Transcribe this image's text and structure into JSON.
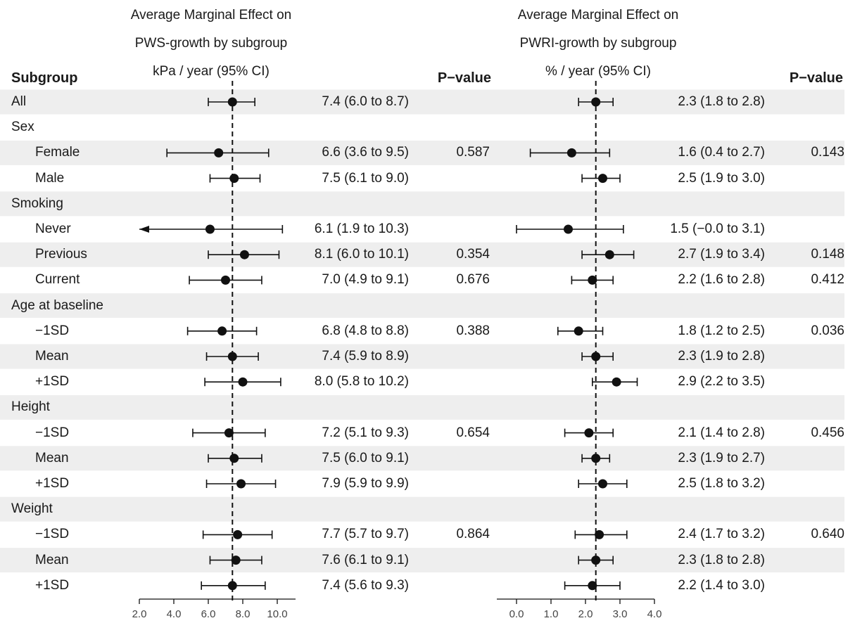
{
  "header": {
    "subgroup_label": "Subgroup",
    "left_title_1": "Average Marginal Effect on",
    "left_title_2": "PWS-growth by subgroup",
    "left_title_3": "kPa / year (95% CI)",
    "left_pvalue_label": "P−value",
    "right_title_1": "Average Marginal Effect on",
    "right_title_2": "PWRI-growth by subgroup",
    "right_title_3": "% / year (95% CI)",
    "right_pvalue_label": "P−value"
  },
  "chart_data": [
    {
      "type": "forest",
      "title": "Average Marginal Effect on PWS-growth by subgroup",
      "xlabel": "kPa / year (95% CI)",
      "xlim": [
        2.0,
        11.0
      ],
      "xticks": [
        2.0,
        4.0,
        6.0,
        8.0,
        10.0
      ],
      "xtick_labels": [
        "2.0",
        "4.0",
        "6.0",
        "8.0",
        "10.0"
      ],
      "reference_line": 7.4,
      "rows": [
        {
          "label": "All",
          "indent": false,
          "shaded": true,
          "est": 7.4,
          "lo": 6.0,
          "hi": 8.7,
          "ci_text": "7.4 (6.0 to 8.7)",
          "p": ""
        },
        {
          "label": "Sex",
          "indent": false,
          "shaded": false,
          "est": null,
          "ci_text": "",
          "p": ""
        },
        {
          "label": "Female",
          "indent": true,
          "shaded": true,
          "est": 6.6,
          "lo": 3.6,
          "hi": 9.5,
          "ci_text": "6.6 (3.6 to 9.5)",
          "p": "0.587"
        },
        {
          "label": "Male",
          "indent": true,
          "shaded": false,
          "est": 7.5,
          "lo": 6.1,
          "hi": 9.0,
          "ci_text": "7.5 (6.1 to 9.0)",
          "p": ""
        },
        {
          "label": "Smoking",
          "indent": false,
          "shaded": true,
          "est": null,
          "ci_text": "",
          "p": ""
        },
        {
          "label": "Never",
          "indent": true,
          "shaded": false,
          "est": 6.1,
          "lo": 1.9,
          "hi": 10.3,
          "ci_text": "6.1 (1.9 to 10.3)",
          "p": "",
          "arrow_left": true
        },
        {
          "label": "Previous",
          "indent": true,
          "shaded": true,
          "est": 8.1,
          "lo": 6.0,
          "hi": 10.1,
          "ci_text": "8.1 (6.0 to 10.1)",
          "p": "0.354"
        },
        {
          "label": "Current",
          "indent": true,
          "shaded": false,
          "est": 7.0,
          "lo": 4.9,
          "hi": 9.1,
          "ci_text": "7.0 (4.9 to 9.1)",
          "p": "0.676"
        },
        {
          "label": "Age at baseline",
          "indent": false,
          "shaded": true,
          "est": null,
          "ci_text": "",
          "p": ""
        },
        {
          "label": "−1SD",
          "indent": true,
          "shaded": false,
          "est": 6.8,
          "lo": 4.8,
          "hi": 8.8,
          "ci_text": "6.8 (4.8 to 8.8)",
          "p": "0.388"
        },
        {
          "label": "Mean",
          "indent": true,
          "shaded": true,
          "est": 7.4,
          "lo": 5.9,
          "hi": 8.9,
          "ci_text": "7.4 (5.9 to 8.9)",
          "p": ""
        },
        {
          "label": "+1SD",
          "indent": true,
          "shaded": false,
          "est": 8.0,
          "lo": 5.8,
          "hi": 10.2,
          "ci_text": "8.0 (5.8 to 10.2)",
          "p": ""
        },
        {
          "label": "Height",
          "indent": false,
          "shaded": true,
          "est": null,
          "ci_text": "",
          "p": ""
        },
        {
          "label": "−1SD",
          "indent": true,
          "shaded": false,
          "est": 7.2,
          "lo": 5.1,
          "hi": 9.3,
          "ci_text": "7.2 (5.1 to 9.3)",
          "p": "0.654"
        },
        {
          "label": "Mean",
          "indent": true,
          "shaded": true,
          "est": 7.5,
          "lo": 6.0,
          "hi": 9.1,
          "ci_text": "7.5 (6.0 to 9.1)",
          "p": ""
        },
        {
          "label": "+1SD",
          "indent": true,
          "shaded": false,
          "est": 7.9,
          "lo": 5.9,
          "hi": 9.9,
          "ci_text": "7.9 (5.9 to 9.9)",
          "p": ""
        },
        {
          "label": "Weight",
          "indent": false,
          "shaded": true,
          "est": null,
          "ci_text": "",
          "p": ""
        },
        {
          "label": "−1SD",
          "indent": true,
          "shaded": false,
          "est": 7.7,
          "lo": 5.7,
          "hi": 9.7,
          "ci_text": "7.7 (5.7 to 9.7)",
          "p": "0.864"
        },
        {
          "label": "Mean",
          "indent": true,
          "shaded": true,
          "est": 7.6,
          "lo": 6.1,
          "hi": 9.1,
          "ci_text": "7.6 (6.1 to 9.1)",
          "p": ""
        },
        {
          "label": "+1SD",
          "indent": true,
          "shaded": false,
          "est": 7.4,
          "lo": 5.6,
          "hi": 9.3,
          "ci_text": "7.4 (5.6 to 9.3)",
          "p": ""
        }
      ]
    },
    {
      "type": "forest",
      "title": "Average Marginal Effect on PWRI-growth by subgroup",
      "xlabel": "% / year (95% CI)",
      "xlim": [
        -0.75,
        4.0
      ],
      "xticks": [
        0.0,
        1.0,
        2.0,
        3.0,
        4.0
      ],
      "xtick_labels": [
        "0.0",
        "1.0",
        "2.0",
        "3.0",
        "4.0"
      ],
      "reference_line": 2.3,
      "rows": [
        {
          "est": 2.3,
          "lo": 1.8,
          "hi": 2.8,
          "ci_text": "2.3 (1.8 to 2.8)",
          "p": ""
        },
        {
          "est": null,
          "ci_text": "",
          "p": ""
        },
        {
          "est": 1.6,
          "lo": 0.4,
          "hi": 2.7,
          "ci_text": "1.6 (0.4 to 2.7)",
          "p": "0.143"
        },
        {
          "est": 2.5,
          "lo": 1.9,
          "hi": 3.0,
          "ci_text": "2.5 (1.9 to 3.0)",
          "p": ""
        },
        {
          "est": null,
          "ci_text": "",
          "p": ""
        },
        {
          "est": 1.5,
          "lo": -0.0,
          "hi": 3.1,
          "ci_text": "1.5 (−0.0 to 3.1)",
          "p": ""
        },
        {
          "est": 2.7,
          "lo": 1.9,
          "hi": 3.4,
          "ci_text": "2.7 (1.9 to 3.4)",
          "p": "0.148"
        },
        {
          "est": 2.2,
          "lo": 1.6,
          "hi": 2.8,
          "ci_text": "2.2 (1.6 to 2.8)",
          "p": "0.412"
        },
        {
          "est": null,
          "ci_text": "",
          "p": ""
        },
        {
          "est": 1.8,
          "lo": 1.2,
          "hi": 2.5,
          "ci_text": "1.8 (1.2 to 2.5)",
          "p": "0.036"
        },
        {
          "est": 2.3,
          "lo": 1.9,
          "hi": 2.8,
          "ci_text": "2.3 (1.9 to 2.8)",
          "p": ""
        },
        {
          "est": 2.9,
          "lo": 2.2,
          "hi": 3.5,
          "ci_text": "2.9 (2.2 to 3.5)",
          "p": ""
        },
        {
          "est": null,
          "ci_text": "",
          "p": ""
        },
        {
          "est": 2.1,
          "lo": 1.4,
          "hi": 2.8,
          "ci_text": "2.1 (1.4 to 2.8)",
          "p": "0.456"
        },
        {
          "est": 2.3,
          "lo": 1.9,
          "hi": 2.7,
          "ci_text": "2.3 (1.9 to 2.7)",
          "p": ""
        },
        {
          "est": 2.5,
          "lo": 1.8,
          "hi": 3.2,
          "ci_text": "2.5 (1.8 to 3.2)",
          "p": ""
        },
        {
          "est": null,
          "ci_text": "",
          "p": ""
        },
        {
          "est": 2.4,
          "lo": 1.7,
          "hi": 3.2,
          "ci_text": "2.4 (1.7 to 3.2)",
          "p": "0.640"
        },
        {
          "est": 2.3,
          "lo": 1.8,
          "hi": 2.8,
          "ci_text": "2.3 (1.8 to 2.8)",
          "p": ""
        },
        {
          "est": 2.2,
          "lo": 1.4,
          "hi": 3.0,
          "ci_text": "2.2 (1.4 to 3.0)",
          "p": ""
        }
      ]
    }
  ]
}
